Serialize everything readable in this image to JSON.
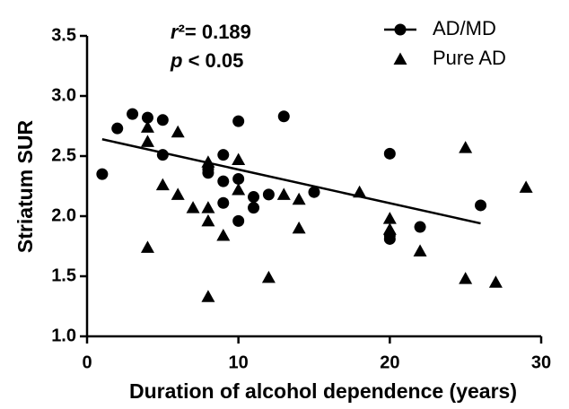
{
  "chart_data": {
    "type": "scatter",
    "xlabel": "Duration of alcohol dependence (years)",
    "ylabel": "Striatum SUR",
    "annotations": [
      "r²= 0.189",
      "p < 0.05"
    ],
    "xlim": [
      0,
      30
    ],
    "ylim": [
      1.0,
      3.5
    ],
    "xticks": [
      0,
      10,
      20,
      30
    ],
    "yticks": [
      {
        "value": 1.0,
        "label": "1.0"
      },
      {
        "value": 1.5,
        "label": "1.5"
      },
      {
        "value": 2.0,
        "label": "2.0"
      },
      {
        "value": 2.5,
        "label": "2.5"
      },
      {
        "value": 3.0,
        "label": "3.0"
      },
      {
        "value": 3.5,
        "label": "3.5"
      }
    ],
    "legend": "top-right",
    "series": [
      {
        "name": "AD/MD",
        "color": "#000000",
        "marker": "circle",
        "x": [
          1,
          2,
          3,
          4,
          5,
          5,
          8,
          8,
          9,
          9,
          9,
          10,
          10,
          10,
          11,
          11,
          12,
          13,
          15,
          20,
          20,
          20,
          22,
          26
        ],
        "values": [
          2.35,
          2.73,
          2.85,
          2.82,
          2.8,
          2.51,
          2.39,
          2.36,
          2.51,
          2.29,
          2.11,
          2.79,
          2.31,
          1.96,
          2.07,
          2.16,
          2.18,
          2.83,
          2.2,
          2.52,
          1.84,
          1.81,
          1.91,
          2.09
        ]
      },
      {
        "name": "Pure AD",
        "color": "#000000",
        "marker": "triangle",
        "x": [
          4,
          4,
          4,
          5,
          6,
          6,
          7,
          8,
          8,
          8,
          8,
          9,
          10,
          10,
          12,
          13,
          14,
          14,
          18,
          20,
          20,
          22,
          25,
          25,
          27,
          29
        ],
        "values": [
          2.74,
          2.62,
          1.74,
          2.26,
          2.7,
          2.18,
          2.07,
          2.45,
          2.07,
          1.96,
          1.33,
          1.84,
          2.47,
          2.22,
          1.49,
          2.18,
          2.14,
          1.9,
          2.2,
          1.98,
          1.89,
          1.71,
          2.57,
          1.48,
          1.45,
          2.24
        ]
      }
    ],
    "fit_line": {
      "x": [
        1,
        26
      ],
      "y": [
        2.64,
        1.94
      ]
    }
  }
}
